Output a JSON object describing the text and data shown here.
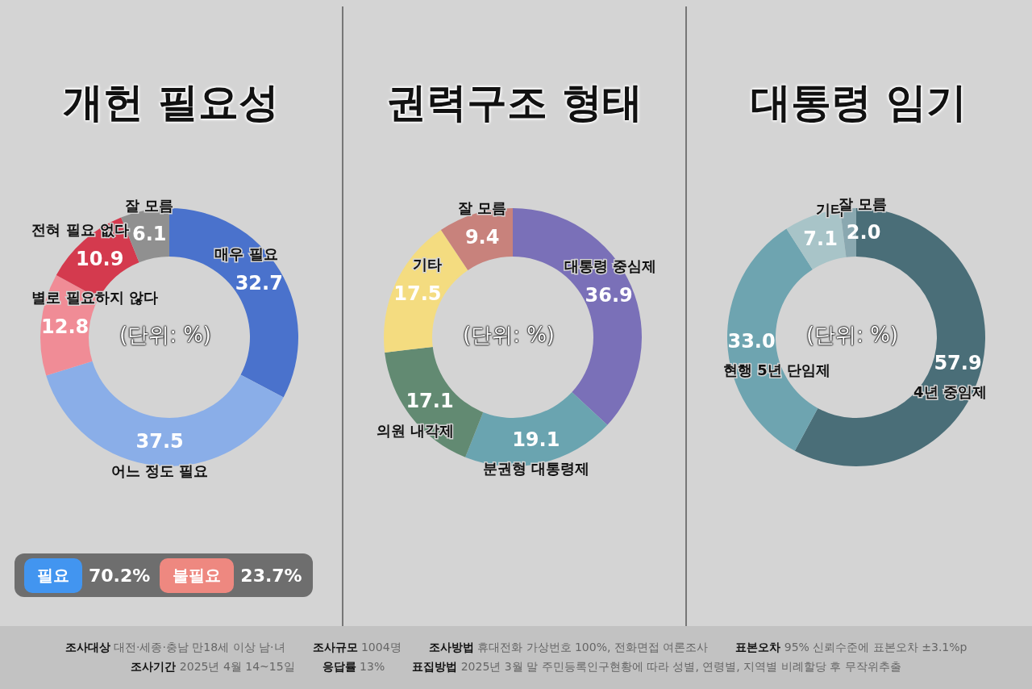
{
  "chart_data": [
    {
      "type": "donut",
      "title": "개헌 필요성",
      "categories": [
        "매우 필요",
        "어느 정도 필요",
        "별로 필요하지 않다",
        "전혀 필요 없다",
        "잘 모름"
      ],
      "values": [
        32.7,
        37.5,
        12.8,
        10.9,
        6.1
      ],
      "value_labels": [
        "32.7",
        "37.5",
        "12.8",
        "10.9",
        "6.1"
      ],
      "colors": [
        "#4a72cc",
        "#8aaee8",
        "#f08c96",
        "#d43a4e",
        "#909090"
      ],
      "annotations": [
        "(단위: %)",
        "필요",
        "70.2%",
        "불필요",
        "23.7%"
      ]
    },
    {
      "type": "donut",
      "title": "권력구조 형태",
      "categories": [
        "대통령 중심제",
        "분권형 대통령제",
        "의원 내각제",
        "기타",
        "잘 모름"
      ],
      "values": [
        36.9,
        19.1,
        17.1,
        17.5,
        9.4
      ],
      "value_labels": [
        "36.9",
        "19.1",
        "17.1",
        "17.5",
        "9.4"
      ],
      "colors": [
        "#7a70b8",
        "#6aa4b0",
        "#628a72",
        "#f4dc80",
        "#c8827c"
      ],
      "annotations": [
        "(단위: %)"
      ]
    },
    {
      "type": "donut",
      "title": "대통령 임기",
      "categories": [
        "4년 중임제",
        "현행 5년 단임제",
        "기타",
        "잘 모름"
      ],
      "values": [
        57.9,
        33.0,
        7.1,
        2.0
      ],
      "value_labels": [
        "57.9",
        "33.0",
        "7.1",
        "2.0"
      ],
      "colors": [
        "#4a6e78",
        "#6ea4b0",
        "#a8c4c8",
        "#8aa8b0"
      ],
      "annotations": [
        "(단위: %)"
      ]
    },
    {
      "type": "other",
      "annotations": [
        "조사대상 대전·세종·충남 만18세 이상 남·녀",
        "조사규모 1004명",
        "조사방법 휴대전화 가상번호 100%, 전화면접 여론조사",
        "표본오차 95% 신뢰수준에 표본오차 ±3.1%p",
        "조사기간 2025년 4월 14~15일",
        "응답률 13%",
        "표집방법 2025년 3월 말 주민등록인구현황에 따라 성별, 연령별, 지역별 비례할당 후 무작위추출"
      ]
    }
  ]
}
